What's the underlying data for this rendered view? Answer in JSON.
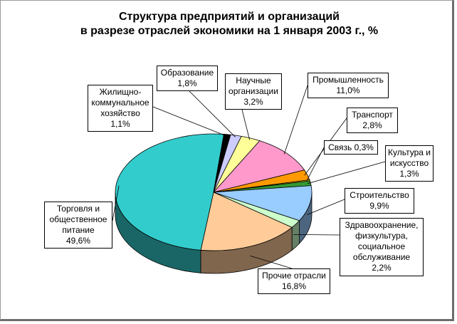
{
  "chart_data": {
    "type": "pie",
    "title": "Структура предприятий и организаций в разрезе отраслей экономики на 1 января 2003 г., %",
    "title_lines": [
      "Структура предприятий и организаций",
      "в разрезе отраслей экономики на 1 января 2003 г., %"
    ],
    "slices": [
      {
        "key": "industry",
        "name": "Промышленность",
        "value": 11.0,
        "color": "#ff99cc",
        "label_lines": [
          "Промышленность",
          "11,0%"
        ]
      },
      {
        "key": "transport",
        "name": "Транспорт",
        "value": 2.8,
        "color": "#ff9900",
        "label_lines": [
          "Транспорт",
          "2,8%"
        ]
      },
      {
        "key": "communication",
        "name": "Связь",
        "value": 0.3,
        "color": "#ffcc00",
        "label_lines": [
          "Связь 0,3%"
        ]
      },
      {
        "key": "culture",
        "name": "Культура и искусство",
        "value": 1.3,
        "color": "#339933",
        "label_lines": [
          "Культура и",
          "искусство",
          "1,3%"
        ]
      },
      {
        "key": "construction",
        "name": "Строительство",
        "value": 9.9,
        "color": "#99ccff",
        "label_lines": [
          "Строительство",
          "9,9%"
        ]
      },
      {
        "key": "health",
        "name": "Здравоохранение, физкультура, социальное обслуживание",
        "value": 2.2,
        "color": "#ccffcc",
        "label_lines": [
          "Здравоохранение,",
          "физкультура,",
          "социальное",
          "обслуживание",
          "2,2%"
        ]
      },
      {
        "key": "other",
        "name": "Прочие отрасли",
        "value": 16.8,
        "color": "#ffcc99",
        "label_lines": [
          "Прочие отрасли",
          "16,8%"
        ]
      },
      {
        "key": "trade",
        "name": "Торговля и общественное питание",
        "value": 49.6,
        "color": "#33cccc",
        "label_lines": [
          "Торговля и",
          "общественное",
          "питание",
          "49,6%"
        ]
      },
      {
        "key": "housing",
        "name": "Жилищно-коммунальное хозяйство",
        "value": 1.1,
        "color": "#000000",
        "label_lines": [
          "Жилищно-",
          "коммунальное",
          "хозяйство",
          "1,1%"
        ]
      },
      {
        "key": "education",
        "name": "Образование",
        "value": 1.8,
        "color": "#ccccff",
        "label_lines": [
          "Образование",
          "1,8%"
        ]
      },
      {
        "key": "science",
        "name": "Научные организации",
        "value": 3.2,
        "color": "#ffff99",
        "label_lines": [
          "Научные",
          "организации",
          "3,2%"
        ]
      }
    ],
    "legend": "none",
    "grid": false,
    "style": "3d-pie"
  }
}
